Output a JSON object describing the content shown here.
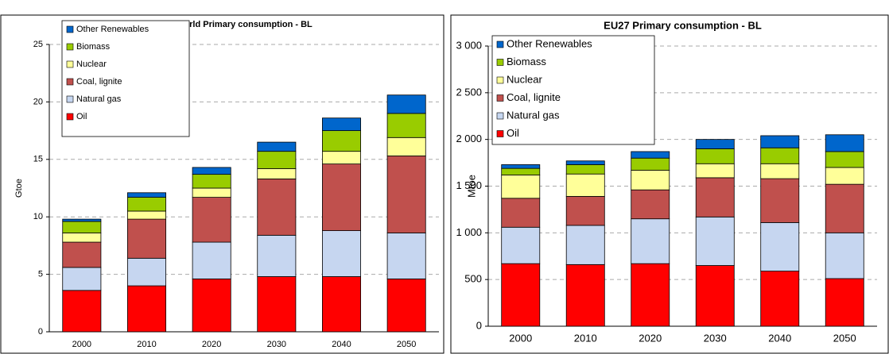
{
  "chart_data": [
    {
      "type": "stacked_bar",
      "title": "World Primary consumption - BL",
      "y_label": "Gtoe",
      "categories": [
        "2000",
        "2010",
        "2020",
        "2030",
        "2040",
        "2050"
      ],
      "series": [
        {
          "name": "Oil",
          "color": "#ff0000",
          "values": [
            3.6,
            4.0,
            4.6,
            4.8,
            4.8,
            4.6
          ]
        },
        {
          "name": "Natural gas",
          "color": "#c6d6f0",
          "values": [
            2.0,
            2.4,
            3.2,
            3.6,
            4.0,
            4.0
          ]
        },
        {
          "name": "Coal, lignite",
          "color": "#c0504d",
          "values": [
            2.2,
            3.4,
            3.9,
            4.9,
            5.8,
            6.7
          ]
        },
        {
          "name": "Nuclear",
          "color": "#ffff99",
          "values": [
            0.8,
            0.7,
            0.8,
            0.9,
            1.1,
            1.6
          ]
        },
        {
          "name": "Biomass",
          "color": "#99cc00",
          "values": [
            1.0,
            1.2,
            1.2,
            1.5,
            1.8,
            2.1
          ]
        },
        {
          "name": "Other Renewables",
          "color": "#0066cc",
          "values": [
            0.2,
            0.4,
            0.6,
            0.8,
            1.1,
            1.6
          ]
        }
      ],
      "ylim": [
        0,
        25
      ],
      "yticks": [
        0,
        5,
        10,
        15,
        20,
        25
      ],
      "grid": true,
      "legend": "top-left"
    },
    {
      "type": "stacked_bar",
      "title": "EU27 Primary consumption - BL",
      "y_label": "Mtoe",
      "categories": [
        "2000",
        "2010",
        "2020",
        "2030",
        "2040",
        "2050"
      ],
      "series": [
        {
          "name": "Oil",
          "color": "#ff0000",
          "values": [
            670,
            660,
            670,
            650,
            590,
            510
          ]
        },
        {
          "name": "Natural gas",
          "color": "#c6d6f0",
          "values": [
            390,
            420,
            480,
            520,
            520,
            490
          ]
        },
        {
          "name": "Coal, lignite",
          "color": "#c0504d",
          "values": [
            310,
            310,
            310,
            420,
            470,
            520
          ]
        },
        {
          "name": "Nuclear",
          "color": "#ffff99",
          "values": [
            250,
            240,
            210,
            150,
            160,
            180
          ]
        },
        {
          "name": "Biomass",
          "color": "#99cc00",
          "values": [
            70,
            100,
            130,
            160,
            170,
            170
          ]
        },
        {
          "name": "Other Renewables",
          "color": "#0066cc",
          "values": [
            40,
            40,
            70,
            100,
            130,
            180
          ]
        }
      ],
      "ylim": [
        0,
        3000
      ],
      "yticks": [
        0,
        {
          "value": 500,
          "label": "500"
        },
        {
          "value": 1000,
          "label": "1 000"
        },
        {
          "value": 1500,
          "label": "1 500"
        },
        {
          "value": 2000,
          "label": "2 000"
        },
        {
          "value": 2500,
          "label": "2 500"
        },
        {
          "value": 3000,
          "label": "3 000"
        }
      ],
      "grid": true,
      "legend": "top-left"
    }
  ]
}
